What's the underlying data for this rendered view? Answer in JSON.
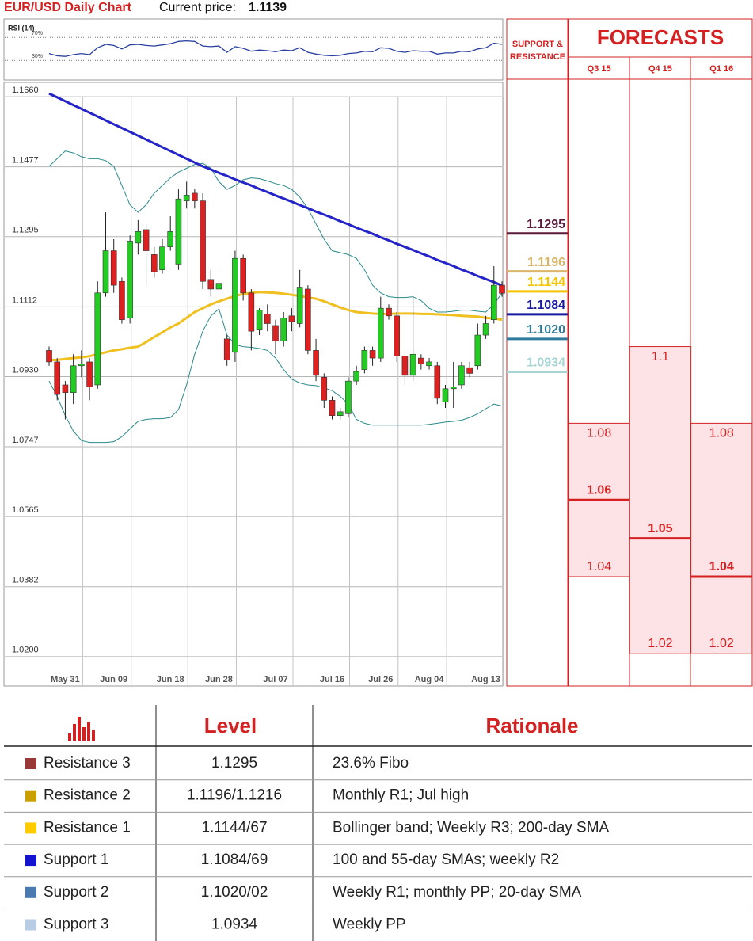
{
  "header": {
    "title": "EUR/USD Daily Chart",
    "price_label": "Current price:",
    "price": "1.1139"
  },
  "chart_data": [
    {
      "type": "line",
      "title": "RSI (14)",
      "color": "#2a3fa0",
      "ylim": [
        18,
        80
      ],
      "yticks": [
        {
          "value": 70,
          "label": "70%"
        },
        {
          "value": 30,
          "label": "30%"
        }
      ],
      "values": [
        42,
        38,
        37,
        40,
        42,
        40,
        52,
        58,
        56,
        50,
        57,
        58,
        56,
        55,
        57,
        59,
        63,
        64,
        63,
        55,
        54,
        55,
        44,
        54,
        51,
        46,
        48,
        47,
        45,
        48,
        47,
        52,
        44,
        41,
        39,
        38,
        39,
        42,
        43,
        46,
        45,
        52,
        51,
        46,
        44,
        47,
        46,
        46,
        41,
        43,
        43,
        46,
        45,
        50,
        52,
        60,
        58
      ]
    },
    {
      "type": "candlestick",
      "up_color": "#22cc22",
      "down_color": "#dd2020",
      "grid": true,
      "categories": [
        null,
        null,
        "May 31",
        null,
        null,
        null,
        null,
        null,
        "Jun 09",
        null,
        null,
        null,
        null,
        null,
        null,
        "Jun 18",
        null,
        null,
        null,
        null,
        null,
        "Jun 28",
        null,
        null,
        null,
        null,
        null,
        null,
        "Jul 07",
        null,
        null,
        null,
        null,
        null,
        null,
        "Jul 16",
        null,
        null,
        null,
        null,
        null,
        "Jul 26",
        null,
        null,
        null,
        null,
        null,
        "Aug 04",
        null,
        null,
        null,
        null,
        null,
        null,
        "Aug 13",
        null,
        null
      ],
      "open": [
        1.099,
        1.096,
        1.09,
        1.088,
        1.095,
        1.096,
        1.09,
        1.114,
        1.125,
        1.117,
        1.1075,
        1.127,
        1.1305,
        1.124,
        1.12,
        1.126,
        1.1215,
        1.138,
        1.14,
        1.138,
        1.1175,
        1.115,
        1.102,
        1.0985,
        1.123,
        1.114,
        1.1045,
        1.1085,
        1.1055,
        1.1015,
        1.108,
        1.106,
        1.115,
        1.099,
        1.092,
        1.086,
        1.082,
        1.0825,
        1.091,
        1.094,
        1.099,
        1.097,
        1.11,
        1.108,
        1.0975,
        1.0925,
        1.097,
        1.095,
        1.095,
        1.0855,
        1.089,
        1.09,
        1.0945,
        1.095,
        1.103,
        1.107,
        1.116
      ],
      "high": [
        1.1,
        1.097,
        1.091,
        1.098,
        1.099,
        1.097,
        1.117,
        1.135,
        1.128,
        1.118,
        1.129,
        1.133,
        1.132,
        1.126,
        1.128,
        1.134,
        1.141,
        1.143,
        1.141,
        1.14,
        1.12,
        1.12,
        1.103,
        1.125,
        1.124,
        1.115,
        1.11,
        1.111,
        1.107,
        1.109,
        1.11,
        1.12,
        1.116,
        1.102,
        1.093,
        1.087,
        1.084,
        1.092,
        1.095,
        1.1,
        1.1,
        1.113,
        1.111,
        1.109,
        1.098,
        1.113,
        1.098,
        1.097,
        1.096,
        1.09,
        1.096,
        1.096,
        1.096,
        1.106,
        1.108,
        1.121,
        1.117
      ],
      "low": [
        1.095,
        1.086,
        1.081,
        1.085,
        1.092,
        1.086,
        1.089,
        1.113,
        1.114,
        1.106,
        1.106,
        1.124,
        1.116,
        1.118,
        1.119,
        1.125,
        1.12,
        1.136,
        1.136,
        1.115,
        1.113,
        1.114,
        1.095,
        1.096,
        1.112,
        1.099,
        1.103,
        1.104,
        1.098,
        1.1,
        1.104,
        1.105,
        1.098,
        1.091,
        1.084,
        1.081,
        1.081,
        1.0815,
        1.09,
        1.093,
        1.095,
        1.096,
        1.107,
        1.096,
        1.09,
        1.091,
        1.094,
        1.094,
        1.085,
        1.084,
        1.084,
        1.089,
        1.092,
        1.094,
        1.102,
        1.106,
        1.113
      ],
      "close": [
        1.096,
        1.0875,
        1.088,
        1.095,
        1.0955,
        1.0895,
        1.114,
        1.125,
        1.116,
        1.107,
        1.1275,
        1.13,
        1.125,
        1.1195,
        1.126,
        1.13,
        1.1385,
        1.1395,
        1.138,
        1.117,
        1.115,
        1.1165,
        1.0965,
        1.123,
        1.114,
        1.104,
        1.1095,
        1.106,
        1.1015,
        1.1075,
        1.1065,
        1.1155,
        1.099,
        1.0925,
        1.086,
        1.082,
        1.083,
        1.091,
        1.0935,
        1.099,
        1.097,
        1.11,
        1.108,
        1.0975,
        1.0925,
        1.098,
        1.0955,
        1.096,
        1.0865,
        1.089,
        1.0895,
        1.095,
        1.093,
        1.103,
        1.106,
        1.116,
        1.1139
      ],
      "series": [
        {
          "color": "#2a8a8a",
          "width": 1,
          "values": [
            1.147,
            1.149,
            1.151,
            1.1505,
            1.1495,
            1.149,
            1.149,
            1.1485,
            1.147,
            1.142,
            1.137,
            1.135,
            1.137,
            1.14,
            1.142,
            1.144,
            1.1455,
            1.1465,
            1.1475,
            1.1478,
            1.1465,
            1.143,
            1.141,
            1.142,
            1.1435,
            1.144,
            1.1438,
            1.1432,
            1.1425,
            1.142,
            1.141,
            1.139,
            1.136,
            1.132,
            1.128,
            1.125,
            1.1245,
            1.124,
            1.123,
            1.12,
            1.116,
            1.114,
            1.113,
            1.1128,
            1.1128,
            1.113,
            1.112,
            1.11,
            1.109,
            1.109,
            1.1092,
            1.1095,
            1.1095,
            1.1092,
            1.109,
            1.111,
            1.114
          ]
        },
        {
          "color": "#2a8a8a",
          "width": 1,
          "values": [
            1.091,
            1.087,
            1.082,
            1.078,
            1.0755,
            1.075,
            1.075,
            1.075,
            1.0752,
            1.0765,
            1.0785,
            1.0805,
            1.081,
            1.0812,
            1.0812,
            1.0815,
            1.0835,
            1.09,
            1.098,
            1.104,
            1.108,
            1.1098,
            1.103,
            1.1005,
            1.1,
            1.0998,
            1.0995,
            1.099,
            1.097,
            1.094,
            1.0915,
            1.0905,
            1.09,
            1.0898,
            1.0892,
            1.0885,
            1.087,
            1.085,
            1.081,
            1.08,
            1.0795,
            1.0795,
            1.0795,
            1.0795,
            1.0795,
            1.0795,
            1.0795,
            1.0797,
            1.08,
            1.0803,
            1.0805,
            1.0808,
            1.0815,
            1.0825,
            1.0838,
            1.085,
            1.0845
          ]
        },
        {
          "color": "#f0c020",
          "width": 3,
          "values": [
            1.0965,
            1.0965,
            1.0968,
            1.097,
            1.0972,
            1.0975,
            1.098,
            1.0985,
            1.099,
            1.0993,
            1.0997,
            1.1,
            1.1012,
            1.1025,
            1.1037,
            1.105,
            1.106,
            1.1075,
            1.109,
            1.11,
            1.111,
            1.1118,
            1.1125,
            1.1132,
            1.1137,
            1.114,
            1.1142,
            1.1141,
            1.114,
            1.1138,
            1.1135,
            1.1132,
            1.1128,
            1.1125,
            1.1118,
            1.111,
            1.1102,
            1.1095,
            1.109,
            1.1088,
            1.1086,
            1.1085,
            1.1085,
            1.1086,
            1.1086,
            1.1086,
            1.1085,
            1.1085,
            1.1084,
            1.1083,
            1.1082,
            1.108,
            1.1079,
            1.1078,
            1.1075,
            1.1073,
            1.107
          ]
        },
        {
          "color": "#2424c8",
          "width": 3,
          "values": [
            1.166,
            1.165,
            1.164,
            1.163,
            1.162,
            1.161,
            1.16,
            1.159,
            1.158,
            1.157,
            1.156,
            1.155,
            1.154,
            1.153,
            1.152,
            1.151,
            1.15,
            1.149,
            1.148,
            1.147,
            1.1462,
            1.1453,
            1.1445,
            1.1436,
            1.1428,
            1.142,
            1.1411,
            1.1403,
            1.1394,
            1.1386,
            1.1378,
            1.1369,
            1.1361,
            1.1352,
            1.1344,
            1.1336,
            1.1327,
            1.1319,
            1.131,
            1.1302,
            1.1294,
            1.1285,
            1.1277,
            1.1268,
            1.126,
            1.1252,
            1.1243,
            1.1235,
            1.1226,
            1.1218,
            1.121,
            1.1201,
            1.1193,
            1.1184,
            1.1176,
            1.1168,
            1.1159
          ]
        }
      ],
      "ylim": [
        1.0117,
        1.1687
      ],
      "yticks": [
        {
          "value": 1.166,
          "label": "1.1660"
        },
        1.1477,
        1.1295,
        1.1112,
        {
          "value": 1.093,
          "label": "1.0930"
        },
        1.0747,
        1.0565,
        1.0382,
        {
          "value": 1.02,
          "label": "1.0200"
        }
      ]
    },
    {
      "type": "levels",
      "title": "SUPPORT & RESISTANCE",
      "values": [
        1.1295,
        1.1196,
        1.1144,
        1.1084,
        1.102,
        1.0934
      ],
      "value_labels": [
        "1.1295",
        "1.1196",
        "1.1144",
        "1.1084",
        "1.1020",
        "1.0934"
      ],
      "colors": [
        "#5a1a3c",
        "#d9b56a",
        "#f5c400",
        "#1a1aa0",
        "#2f7a9a",
        "#a8d4d4"
      ]
    },
    {
      "type": "forecast",
      "title": "FORECASTS",
      "color": "#d42020",
      "fill": "#fde3e6",
      "categories": [
        "Q3 15",
        "Q4 15",
        "Q1 16"
      ],
      "high": [
        1.08,
        1.1,
        1.08
      ],
      "median": [
        1.06,
        1.05,
        1.04
      ],
      "low": [
        1.04,
        1.02,
        1.02
      ]
    }
  ],
  "table": {
    "columns": [
      "Level",
      "Rationale"
    ],
    "rows": [
      {
        "name": "Resistance 3",
        "color": "#993838",
        "level": "1.1295",
        "rationale": "23.6% Fibo"
      },
      {
        "name": "Resistance 2",
        "color": "#c9a000",
        "level": "1.1196/1.1216",
        "rationale": "Monthly R1; Jul high"
      },
      {
        "name": "Resistance 1",
        "color": "#ffcc00",
        "level": "1.1144/67",
        "rationale": "Bollinger band; Weekly R3; 200-day SMA"
      },
      {
        "name": "Support 1",
        "color": "#1414d0",
        "level": "1.1084/69",
        "rationale": "100 and 55-day SMAs; weekly R2"
      },
      {
        "name": "Support 2",
        "color": "#4a7ab0",
        "level": "1.1020/02",
        "rationale": "Weekly R1; monthly PP; 20-day SMA"
      },
      {
        "name": "Support 3",
        "color": "#b8cce4",
        "level": "1.0934",
        "rationale": "Weekly PP"
      }
    ]
  }
}
